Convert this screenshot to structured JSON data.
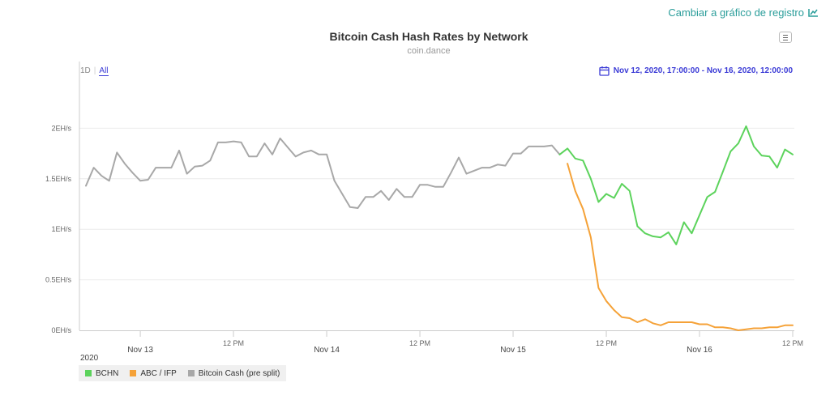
{
  "toplink": {
    "label": "Cambiar a gráfico de registro",
    "icon": "line-chart-icon"
  },
  "range_buttons": {
    "one_day": "1D",
    "all": "All"
  },
  "date_range": {
    "label": "Nov 12, 2020, 17:00:00 - Nov 16, 2020, 12:00:00",
    "icon": "calendar-icon"
  },
  "year_label": "2020",
  "colors": {
    "bchn": "#5cd35c",
    "abc": "#f5a238",
    "pre_split": "#a8a8a8",
    "accent": "#3a3ad6",
    "link": "#2a9d9a"
  },
  "chart_data": {
    "type": "line",
    "title": "Bitcoin Cash Hash Rates by Network",
    "subtitle": "coin.dance",
    "xlabel": "",
    "ylabel": "",
    "ylim": [
      0,
      2.5
    ],
    "xlim": [
      0,
      91
    ],
    "yticks": [
      {
        "value": 0,
        "label": "0EH/s"
      },
      {
        "value": 0.5,
        "label": "0.5EH/s"
      },
      {
        "value": 1,
        "label": "1EH/s"
      },
      {
        "value": 1.5,
        "label": "1.5EH/s"
      },
      {
        "value": 2,
        "label": "2EH/s"
      }
    ],
    "xticks": [
      {
        "value": 7,
        "label": "Nov 13"
      },
      {
        "value": 19,
        "label": "12 PM"
      },
      {
        "value": 31,
        "label": "Nov 14"
      },
      {
        "value": 43,
        "label": "12 PM"
      },
      {
        "value": 55,
        "label": "Nov 15"
      },
      {
        "value": 67,
        "label": "12 PM"
      },
      {
        "value": 79,
        "label": "Nov 16"
      },
      {
        "value": 91,
        "label": "12 PM"
      }
    ],
    "grid": true,
    "legend_position": "bottom-left",
    "series": [
      {
        "name": "BCHN",
        "x": [
          61,
          62,
          63,
          64,
          65,
          66,
          67,
          68,
          69,
          70,
          71,
          72,
          73,
          74,
          75,
          76,
          77,
          78,
          79,
          80,
          81,
          82,
          83,
          84,
          85,
          86,
          87,
          88,
          89,
          90,
          91
        ],
        "values": [
          1.74,
          1.8,
          1.7,
          1.68,
          1.5,
          1.27,
          1.35,
          1.31,
          1.45,
          1.38,
          1.03,
          0.96,
          0.93,
          0.92,
          0.97,
          0.85,
          1.07,
          0.96,
          1.14,
          1.32,
          1.37,
          1.57,
          1.77,
          1.85,
          2.02,
          1.82,
          1.73,
          1.72,
          1.61,
          1.79,
          1.74
        ]
      },
      {
        "name": "ABC / IFP",
        "x": [
          62,
          63,
          64,
          65,
          66,
          67,
          68,
          69,
          70,
          71,
          72,
          73,
          74,
          75,
          76,
          77,
          78,
          79,
          80,
          81,
          82,
          83,
          84,
          85,
          86,
          87,
          88,
          89,
          90,
          91
        ],
        "values": [
          1.65,
          1.38,
          1.2,
          0.92,
          0.42,
          0.29,
          0.2,
          0.13,
          0.12,
          0.08,
          0.11,
          0.07,
          0.05,
          0.08,
          0.08,
          0.08,
          0.08,
          0.06,
          0.06,
          0.03,
          0.03,
          0.02,
          0.0,
          0.01,
          0.02,
          0.02,
          0.03,
          0.03,
          0.05,
          0.05
        ]
      },
      {
        "name": "Bitcoin Cash (pre split)",
        "x": [
          0,
          1,
          2,
          3,
          4,
          5,
          6,
          7,
          8,
          9,
          10,
          11,
          12,
          13,
          14,
          15,
          16,
          17,
          18,
          19,
          20,
          21,
          22,
          23,
          24,
          25,
          26,
          27,
          28,
          29,
          30,
          31,
          32,
          33,
          34,
          35,
          36,
          37,
          38,
          39,
          40,
          41,
          42,
          43,
          44,
          45,
          46,
          47,
          48,
          49,
          50,
          51,
          52,
          53,
          54,
          55,
          56,
          57,
          58,
          59,
          60,
          61
        ],
        "values": [
          1.43,
          1.61,
          1.53,
          1.48,
          1.76,
          1.65,
          1.56,
          1.48,
          1.49,
          1.61,
          1.61,
          1.61,
          1.78,
          1.55,
          1.62,
          1.63,
          1.68,
          1.86,
          1.86,
          1.87,
          1.86,
          1.72,
          1.72,
          1.85,
          1.74,
          1.9,
          1.81,
          1.72,
          1.76,
          1.78,
          1.74,
          1.74,
          1.48,
          1.35,
          1.22,
          1.21,
          1.32,
          1.32,
          1.38,
          1.29,
          1.4,
          1.32,
          1.32,
          1.44,
          1.44,
          1.42,
          1.42,
          1.56,
          1.71,
          1.55,
          1.58,
          1.61,
          1.61,
          1.64,
          1.63,
          1.75,
          1.75,
          1.82,
          1.82,
          1.82,
          1.83,
          1.74
        ]
      }
    ]
  }
}
